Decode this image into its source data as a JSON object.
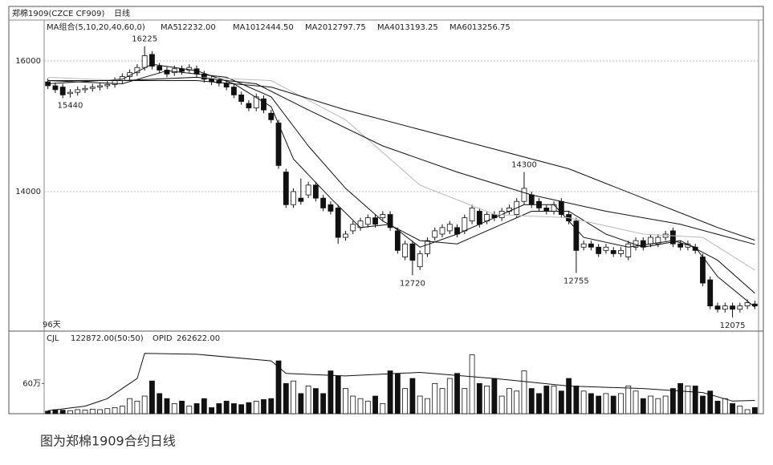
{
  "chart_data": {
    "type": "candlestick",
    "title": "郑棉1909(CZCE CF909)",
    "period": "日线",
    "indicator": "MA组合(5,10,20,40,60,0)",
    "days_label": "96天",
    "caption": "图为郑棉1909合约日线",
    "ylim": [
      11865,
      16626
    ],
    "yticks": [
      14000,
      16000
    ],
    "grid": true,
    "ohlc": [
      [
        15680,
        15730,
        15570,
        15620
      ],
      [
        15620,
        15670,
        15510,
        15560
      ],
      [
        15600,
        15650,
        15430,
        15480
      ],
      [
        15500,
        15570,
        15440,
        15520
      ],
      [
        15520,
        15610,
        15470,
        15560
      ],
      [
        15560,
        15630,
        15510,
        15580
      ],
      [
        15580,
        15650,
        15530,
        15600
      ],
      [
        15600,
        15670,
        15550,
        15620
      ],
      [
        15620,
        15690,
        15570,
        15640
      ],
      [
        15640,
        15750,
        15590,
        15700
      ],
      [
        15700,
        15810,
        15650,
        15760
      ],
      [
        15760,
        15870,
        15710,
        15820
      ],
      [
        15820,
        15950,
        15770,
        15900
      ],
      [
        15900,
        16225,
        15850,
        16080
      ],
      [
        16100,
        16150,
        15870,
        15920
      ],
      [
        15920,
        15970,
        15810,
        15860
      ],
      [
        15860,
        15910,
        15750,
        15800
      ],
      [
        15820,
        15930,
        15770,
        15880
      ],
      [
        15880,
        15930,
        15790,
        15840
      ],
      [
        15860,
        15950,
        15810,
        15900
      ],
      [
        15880,
        15930,
        15750,
        15800
      ],
      [
        15800,
        15850,
        15670,
        15720
      ],
      [
        15720,
        15770,
        15630,
        15680
      ],
      [
        15700,
        15750,
        15610,
        15660
      ],
      [
        15660,
        15710,
        15550,
        15600
      ],
      [
        15600,
        15650,
        15430,
        15480
      ],
      [
        15480,
        15530,
        15330,
        15380
      ],
      [
        15350,
        15400,
        15230,
        15280
      ],
      [
        15280,
        15500,
        15230,
        15450
      ],
      [
        15420,
        15470,
        15200,
        15250
      ],
      [
        15200,
        15250,
        15050,
        15100
      ],
      [
        15050,
        15100,
        14350,
        14400
      ],
      [
        14300,
        14350,
        13750,
        13800
      ],
      [
        13800,
        14050,
        13750,
        14000
      ],
      [
        13900,
        14200,
        13800,
        13850
      ],
      [
        13950,
        14150,
        13900,
        14100
      ],
      [
        14100,
        14150,
        13850,
        13900
      ],
      [
        13900,
        13950,
        13700,
        13750
      ],
      [
        13800,
        13850,
        13650,
        13700
      ],
      [
        13750,
        13800,
        13200,
        13300
      ],
      [
        13300,
        13400,
        13250,
        13350
      ],
      [
        13400,
        13550,
        13350,
        13500
      ],
      [
        13450,
        13600,
        13400,
        13550
      ],
      [
        13500,
        13650,
        13450,
        13600
      ],
      [
        13600,
        13650,
        13450,
        13500
      ],
      [
        13600,
        13700,
        13550,
        13650
      ],
      [
        13650,
        13700,
        13400,
        13450
      ],
      [
        13400,
        13450,
        13050,
        13100
      ],
      [
        13000,
        13250,
        12950,
        13200
      ],
      [
        13200,
        13250,
        12720,
        12950
      ],
      [
        12850,
        13100,
        12800,
        13050
      ],
      [
        13050,
        13300,
        13000,
        13250
      ],
      [
        13300,
        13450,
        13250,
        13400
      ],
      [
        13350,
        13500,
        13300,
        13450
      ],
      [
        13400,
        13550,
        13350,
        13500
      ],
      [
        13450,
        13500,
        13300,
        13350
      ],
      [
        13400,
        13650,
        13350,
        13600
      ],
      [
        13550,
        13800,
        13500,
        13750
      ],
      [
        13700,
        13750,
        13450,
        13500
      ],
      [
        13550,
        13700,
        13500,
        13650
      ],
      [
        13650,
        13700,
        13550,
        13600
      ],
      [
        13600,
        13750,
        13550,
        13700
      ],
      [
        13700,
        13800,
        13650,
        13750
      ],
      [
        13650,
        13900,
        13600,
        13850
      ],
      [
        13850,
        14300,
        13800,
        14050
      ],
      [
        13950,
        14000,
        13750,
        13800
      ],
      [
        13850,
        13900,
        13700,
        13750
      ],
      [
        13750,
        13800,
        13650,
        13700
      ],
      [
        13700,
        13850,
        13650,
        13800
      ],
      [
        13850,
        13900,
        13600,
        13650
      ],
      [
        13650,
        13700,
        13500,
        13550
      ],
      [
        13550,
        13600,
        12755,
        13100
      ],
      [
        13150,
        13250,
        13100,
        13200
      ],
      [
        13200,
        13250,
        13100,
        13150
      ],
      [
        13150,
        13200,
        13000,
        13050
      ],
      [
        13100,
        13200,
        13050,
        13150
      ],
      [
        13100,
        13150,
        13000,
        13050
      ],
      [
        13050,
        13150,
        13000,
        13100
      ],
      [
        13000,
        13250,
        12950,
        13200
      ],
      [
        13150,
        13300,
        13100,
        13250
      ],
      [
        13250,
        13300,
        13100,
        13150
      ],
      [
        13200,
        13350,
        13150,
        13300
      ],
      [
        13200,
        13350,
        13150,
        13300
      ],
      [
        13300,
        13400,
        13250,
        13350
      ],
      [
        13400,
        13450,
        13150,
        13200
      ],
      [
        13200,
        13250,
        13100,
        13150
      ],
      [
        13150,
        13250,
        13100,
        13200
      ],
      [
        13150,
        13200,
        13050,
        13100
      ],
      [
        13000,
        13050,
        12550,
        12600
      ],
      [
        12650,
        12700,
        12200,
        12250
      ],
      [
        12250,
        12300,
        12150,
        12200
      ],
      [
        12200,
        12300,
        12150,
        12250
      ],
      [
        12250,
        12300,
        12075,
        12200
      ],
      [
        12200,
        12300,
        12150,
        12250
      ],
      [
        12250,
        12350,
        12200,
        12300
      ],
      [
        12280,
        12330,
        12200,
        12250
      ]
    ],
    "annotations": [
      {
        "x": 13,
        "value": 16225
      },
      {
        "x": 3,
        "value": 15440
      },
      {
        "x": 49,
        "value": 12720
      },
      {
        "x": 64,
        "value": 14300
      },
      {
        "x": 71,
        "value": 12755
      },
      {
        "x": 92,
        "value": 12075
      }
    ],
    "ma_lines": [
      {
        "name": "MA5",
        "last_label": "12232.00",
        "color": "#111",
        "x": [
          0,
          10,
          14,
          20,
          25,
          30,
          33,
          38,
          42,
          46,
          50,
          55,
          60,
          64,
          68,
          72,
          78,
          84,
          87,
          90,
          95
        ],
        "values": [
          15650,
          15720,
          15950,
          15850,
          15650,
          15300,
          14500,
          13900,
          13450,
          13500,
          13150,
          13350,
          13600,
          13800,
          13800,
          13300,
          13150,
          13250,
          13150,
          12700,
          12232
        ]
      },
      {
        "name": "MA10",
        "last_label": "12444.50",
        "color": "#111",
        "x": [
          0,
          10,
          16,
          24,
          30,
          35,
          40,
          45,
          50,
          55,
          60,
          65,
          70,
          75,
          80,
          85,
          90,
          95
        ],
        "values": [
          15700,
          15650,
          15850,
          15750,
          15450,
          14700,
          14050,
          13550,
          13250,
          13200,
          13450,
          13700,
          13700,
          13350,
          13150,
          13250,
          12950,
          12444.5
        ]
      },
      {
        "name": "MA20",
        "last_label": "12797.75",
        "color": "#bbb",
        "x": [
          0,
          10,
          20,
          30,
          40,
          50,
          60,
          70,
          80,
          88,
          95
        ],
        "values": [
          15750,
          15700,
          15750,
          15700,
          15100,
          14100,
          13650,
          13600,
          13350,
          13300,
          12797.75
        ]
      },
      {
        "name": "MA40",
        "last_label": "13193.25",
        "color": "#111",
        "x": [
          0,
          10,
          20,
          28,
          35,
          45,
          55,
          65,
          75,
          85,
          95
        ],
        "values": [
          15700,
          15700,
          15750,
          15650,
          15250,
          14700,
          14300,
          13950,
          13700,
          13500,
          13193.25
        ]
      },
      {
        "name": "MA60",
        "last_label": "13256.75",
        "color": "#111",
        "x": [
          0,
          10,
          20,
          30,
          40,
          50,
          60,
          70,
          80,
          90,
          95
        ],
        "values": [
          15700,
          15700,
          15700,
          15600,
          15250,
          14950,
          14650,
          14350,
          13900,
          13450,
          13256.75
        ]
      }
    ],
    "volume": {
      "name": "CJL",
      "last_label": "122872.00(50:50)",
      "ylim": [
        0,
        1370000
      ],
      "yticks": [
        {
          "value": 600000,
          "label": "60万"
        }
      ],
      "values": [
        50000,
        80000,
        70000,
        60000,
        80000,
        70000,
        90000,
        80000,
        100000,
        120000,
        150000,
        300000,
        250000,
        350000,
        650000,
        400000,
        300000,
        200000,
        250000,
        150000,
        200000,
        300000,
        120000,
        200000,
        250000,
        200000,
        180000,
        220000,
        250000,
        280000,
        300000,
        1050000,
        600000,
        650000,
        400000,
        550000,
        500000,
        400000,
        850000,
        750000,
        500000,
        350000,
        300000,
        250000,
        350000,
        200000,
        850000,
        800000,
        500000,
        700000,
        350000,
        300000,
        600000,
        500000,
        700000,
        800000,
        500000,
        1170000,
        600000,
        550000,
        700000,
        350000,
        500000,
        450000,
        850000,
        500000,
        400000,
        550000,
        550000,
        450000,
        700000,
        550000,
        450000,
        400000,
        350000,
        400000,
        350000,
        400000,
        550000,
        450000,
        300000,
        350000,
        300000,
        350000,
        500000,
        600000,
        550000,
        550000,
        350000,
        450000,
        250000,
        300000,
        200000,
        150000,
        80000,
        122872
      ]
    },
    "opid": {
      "name": "OPID",
      "last_label": "262622.00",
      "x": [
        0,
        5,
        8,
        10,
        12,
        13,
        20,
        30,
        32,
        40,
        50,
        60,
        70,
        80,
        88,
        92,
        95
      ],
      "values": [
        60000,
        150000,
        300000,
        500000,
        700000,
        1200000,
        1180000,
        1050000,
        800000,
        750000,
        820000,
        700000,
        550000,
        500000,
        420000,
        250000,
        262622
      ]
    }
  }
}
